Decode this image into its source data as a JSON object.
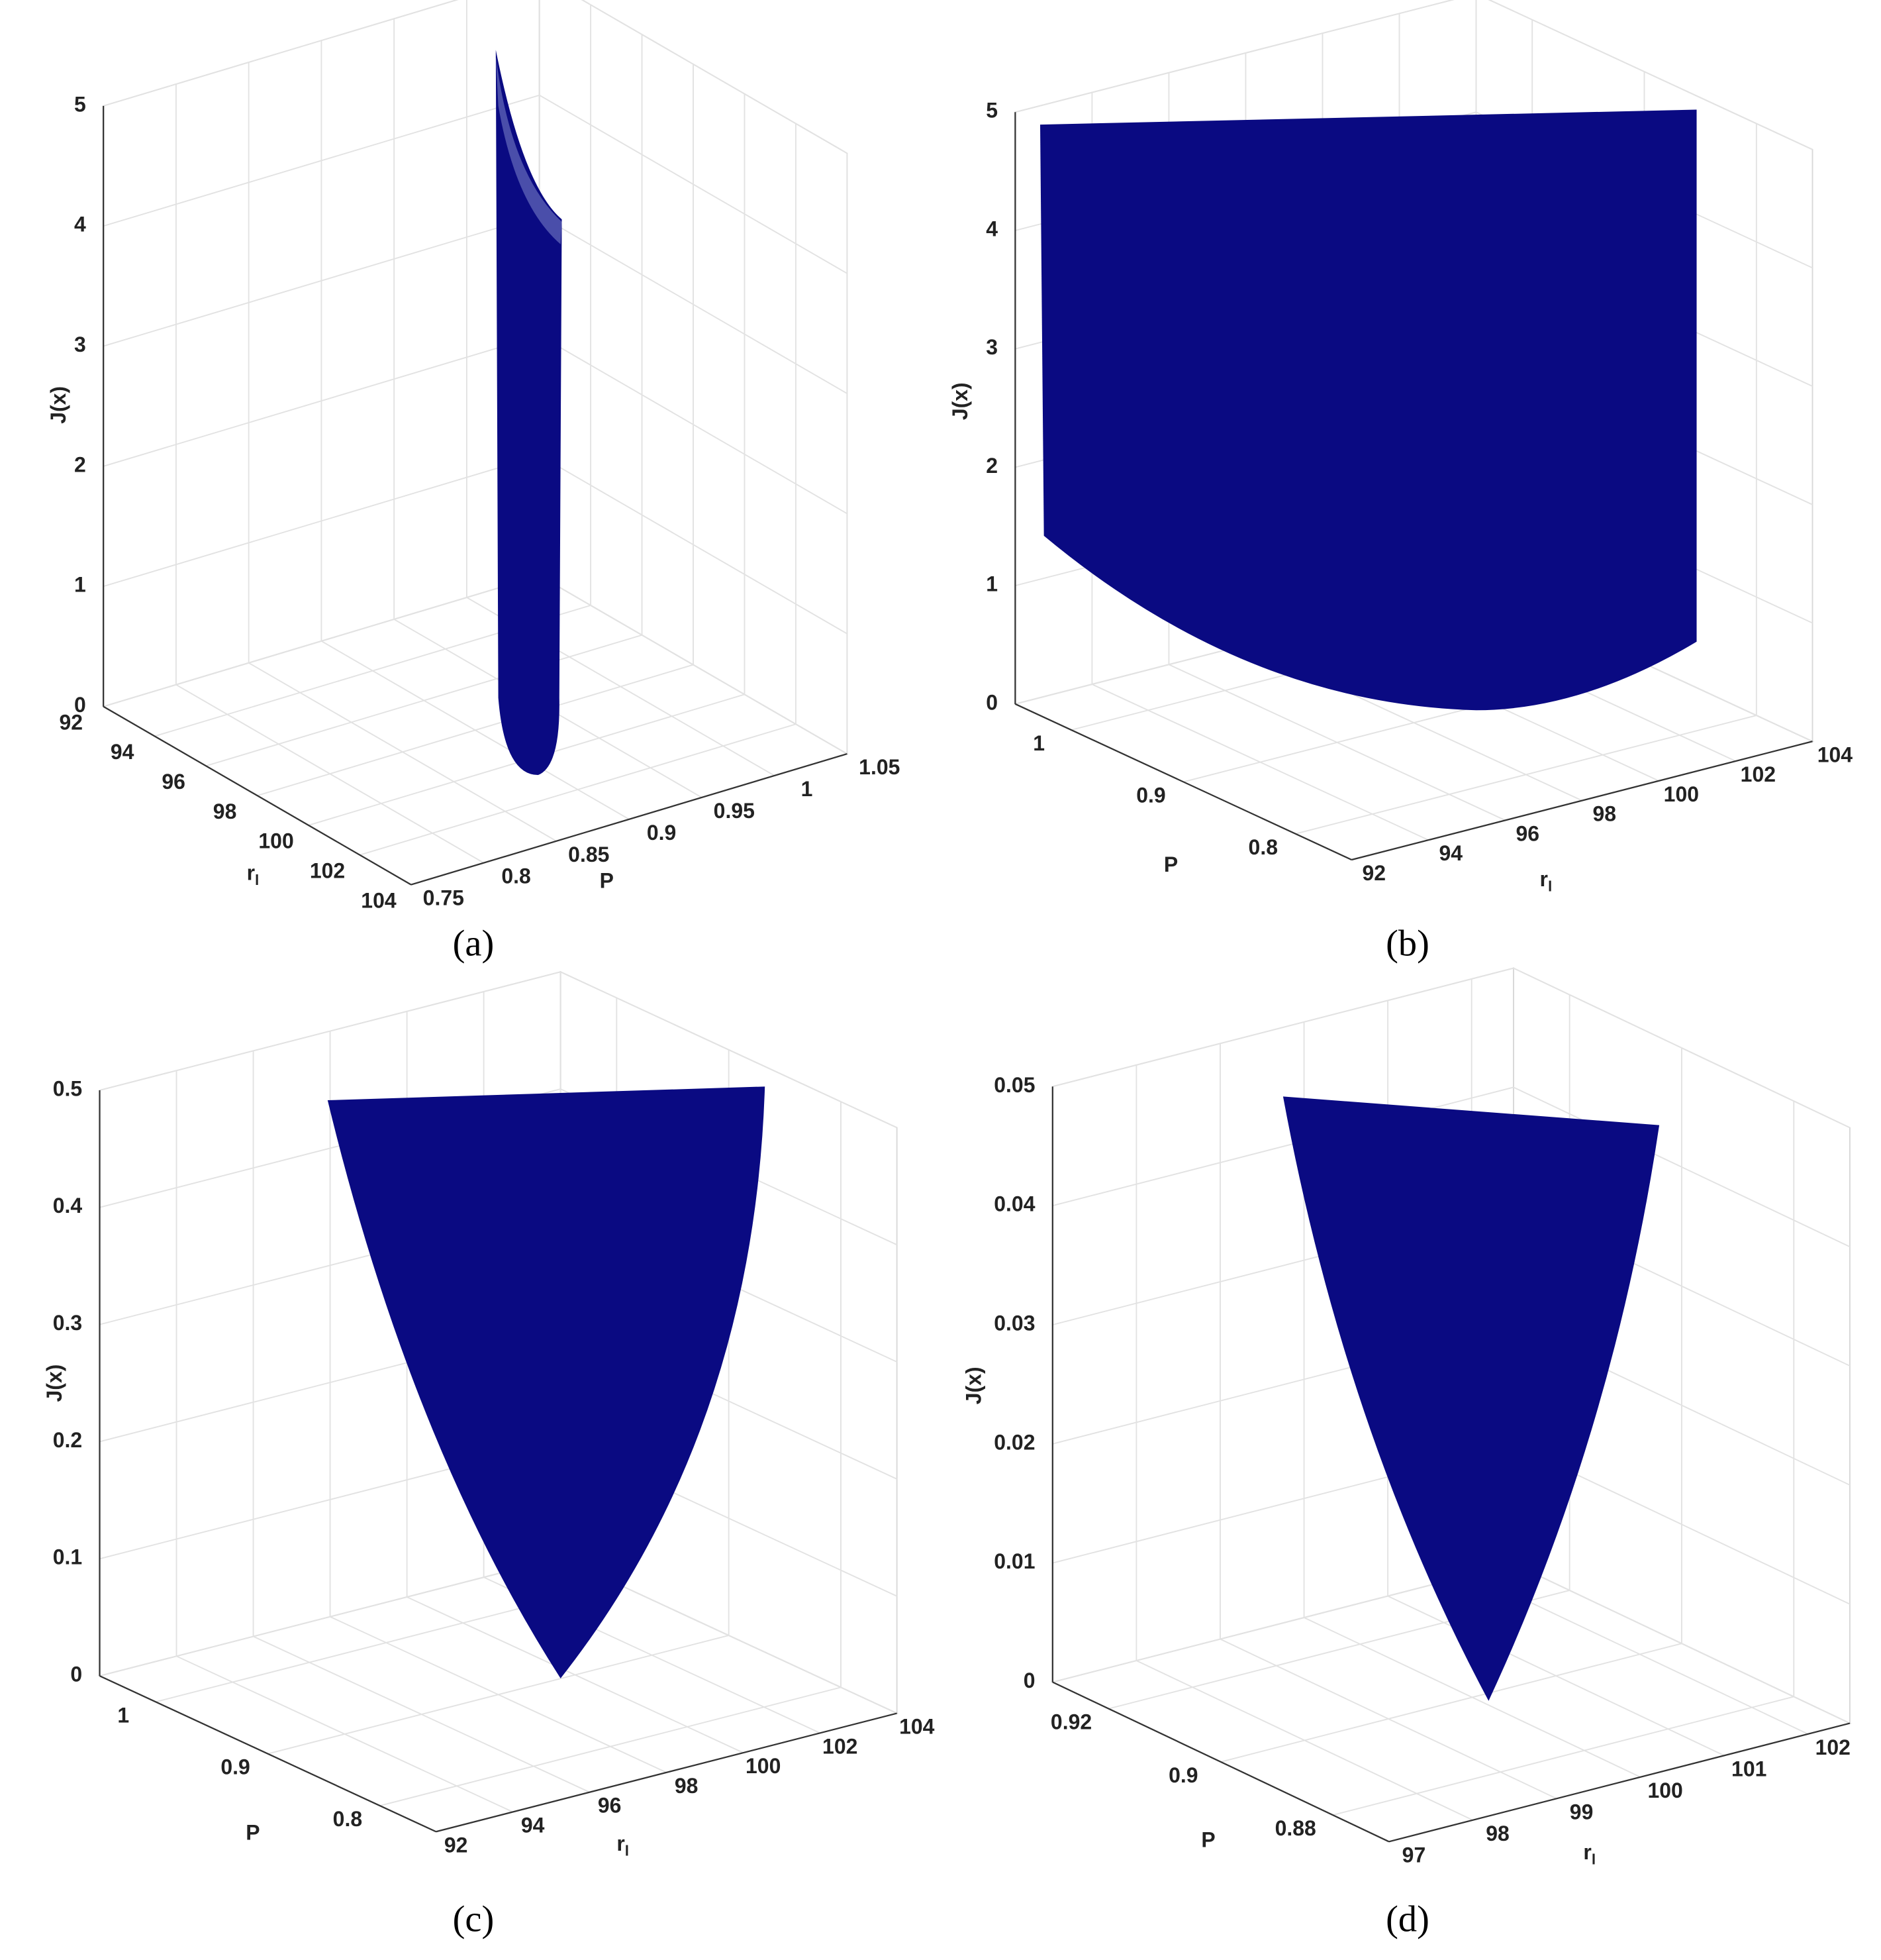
{
  "chart_data": [
    {
      "type": "surface3d",
      "label": "(a)",
      "xlabel": "r",
      "xlabel_sub": "l",
      "ylabel": "P",
      "zlabel": "J(x)",
      "color": "#0a0a82",
      "xlim": [
        92,
        104
      ],
      "xticks": [
        92,
        94,
        96,
        98,
        100,
        102,
        104
      ],
      "ylim": [
        0.75,
        1.05
      ],
      "yticks": [
        0.75,
        0.8,
        0.85,
        0.9,
        0.95,
        1,
        1.05
      ],
      "zlim": [
        0,
        5
      ],
      "zticks": [
        0,
        1,
        2,
        3,
        4,
        5
      ],
      "grid": true
    },
    {
      "type": "surface3d",
      "label": "(b)",
      "xlabel": "r",
      "xlabel_sub": "l",
      "ylabel": "P",
      "zlabel": "J(x)",
      "color": "#0a0a82",
      "xlim": [
        92,
        104
      ],
      "xticks": [
        92,
        94,
        96,
        98,
        100,
        102,
        104
      ],
      "ylim": [
        0.75,
        1.05
      ],
      "yticks": [
        0.8,
        0.9,
        1
      ],
      "zlim": [
        0,
        5
      ],
      "zticks": [
        0,
        1,
        2,
        3,
        4,
        5
      ],
      "grid": true
    },
    {
      "type": "surface3d",
      "label": "(c)",
      "xlabel": "r",
      "xlabel_sub": "l",
      "ylabel": "P",
      "zlabel": "J(x)",
      "color": "#0a0a82",
      "xlim": [
        92,
        104
      ],
      "xticks": [
        92,
        94,
        96,
        98,
        100,
        102,
        104
      ],
      "ylim": [
        0.75,
        1.05
      ],
      "yticks": [
        0.8,
        0.9,
        1
      ],
      "zlim": [
        0,
        0.5
      ],
      "zticks": [
        0,
        0.1,
        0.2,
        0.3,
        0.4,
        0.5
      ],
      "grid": true
    },
    {
      "type": "surface3d",
      "label": "(d)",
      "xlabel": "r",
      "xlabel_sub": "l",
      "ylabel": "P",
      "zlabel": "J(x)",
      "color": "#0a0a82",
      "xlim": [
        97,
        102.5
      ],
      "xticks": [
        97,
        98,
        99,
        100,
        101,
        102
      ],
      "ylim": [
        0.87,
        0.93
      ],
      "yticks": [
        0.88,
        0.9,
        0.92
      ],
      "zlim": [
        0,
        0.05
      ],
      "zticks": [
        0,
        0.01,
        0.02,
        0.03,
        0.04,
        0.05
      ],
      "grid": true
    }
  ]
}
